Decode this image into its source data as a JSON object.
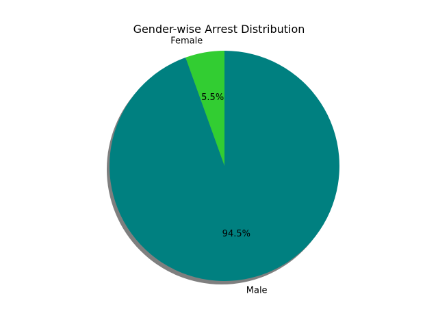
{
  "chart_data": {
    "type": "pie",
    "title": "Gender-wise Arrest Distribution",
    "slices": [
      {
        "label": "Female",
        "value": 5.5,
        "percent_label": "5.5%",
        "color": "#32cd32"
      },
      {
        "label": "Male",
        "value": 94.5,
        "percent_label": "94.5%",
        "color": "#008080"
      }
    ],
    "start_angle_deg": 90,
    "direction": "counterclockwise",
    "shadow": true,
    "legend": "none"
  }
}
